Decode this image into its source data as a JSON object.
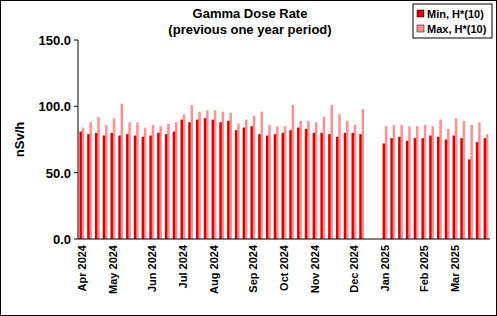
{
  "chart_data": {
    "type": "bar",
    "title": "Gamma Dose Rate",
    "subtitle": "(previous one year period)",
    "y_label": "nSv/h",
    "categories": [
      "Apr 2024",
      null,
      null,
      null,
      "May 2024",
      null,
      null,
      null,
      null,
      "Jun 2024",
      null,
      null,
      null,
      "Jul 2024",
      null,
      null,
      null,
      "Aug 2024",
      null,
      null,
      null,
      null,
      "Sep 2024",
      null,
      null,
      null,
      "Oct 2024",
      null,
      null,
      null,
      "Nov 2024",
      null,
      null,
      null,
      null,
      "Dec 2024",
      null,
      null,
      null,
      "Jan 2025",
      null,
      null,
      null,
      null,
      "Feb 2025",
      null,
      null,
      null,
      "Mar 2025",
      null,
      null,
      null,
      null
    ],
    "series": [
      {
        "name": "Min, H*(10)",
        "color": "#e00000",
        "values": [
          81,
          79,
          80,
          78,
          80,
          78,
          79,
          78,
          77,
          78,
          80,
          79,
          81,
          90,
          88,
          90,
          91,
          90,
          88,
          89,
          82,
          84,
          85,
          79,
          78,
          79,
          80,
          82,
          84,
          83,
          80,
          80,
          79,
          77,
          80,
          80,
          79,
          null,
          null,
          72,
          76,
          77,
          74,
          76,
          76,
          78,
          77,
          75,
          78,
          76,
          60,
          73,
          76
        ]
      },
      {
        "name": "Max, H*(10)",
        "color": "#ff9090",
        "values": [
          84,
          88,
          92,
          86,
          91,
          102,
          88,
          88,
          84,
          86,
          85,
          87,
          88,
          94,
          101,
          96,
          97,
          97,
          96,
          95,
          87,
          90,
          93,
          96,
          86,
          85,
          85,
          101,
          89,
          89,
          88,
          92,
          101,
          94,
          89,
          86,
          98,
          null,
          null,
          85,
          86,
          86,
          85,
          85,
          86,
          85,
          90,
          83,
          91,
          89,
          86,
          88,
          79
        ]
      }
    ],
    "ylim": [
      0,
      150
    ],
    "yticks": [
      {
        "value": 0,
        "label": "0.0"
      },
      {
        "value": 50,
        "label": "50.0"
      },
      {
        "value": 100,
        "label": "100.0"
      },
      {
        "value": 150,
        "label": "150.0"
      }
    ],
    "grid": false,
    "legend": "top-right"
  }
}
